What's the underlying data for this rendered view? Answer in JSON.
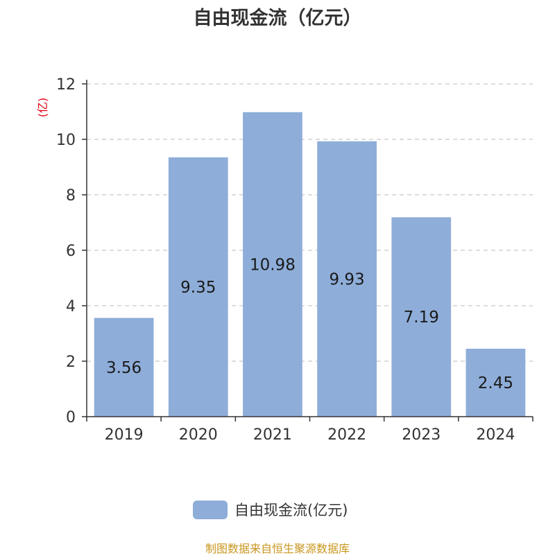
{
  "title": "自由现金流（亿元）",
  "footer": "制图数据来自恒生聚源数据库",
  "colors": {
    "bar": "#8eadd9",
    "axis": "#333333",
    "grid": "#bbbbbb",
    "unit": "#e60012",
    "footer": "#c8961e",
    "text": "#333333"
  },
  "chart_data": {
    "type": "bar",
    "categories": [
      "2019",
      "2020",
      "2021",
      "2022",
      "2023",
      "2024"
    ],
    "series": [
      {
        "name": "自由现金流(亿元)",
        "values": [
          3.56,
          9.35,
          10.98,
          9.93,
          7.19,
          2.45
        ]
      }
    ],
    "data_labels": [
      "3.56",
      "9.35",
      "10.98",
      "9.93",
      "7.19",
      "2.45"
    ],
    "yticks": [
      "0",
      "2",
      "4",
      "6",
      "8",
      "10",
      "12"
    ],
    "ylim": [
      0,
      12
    ],
    "yunit": "(亿)",
    "grid": true,
    "legend_position": "bottom-center"
  }
}
